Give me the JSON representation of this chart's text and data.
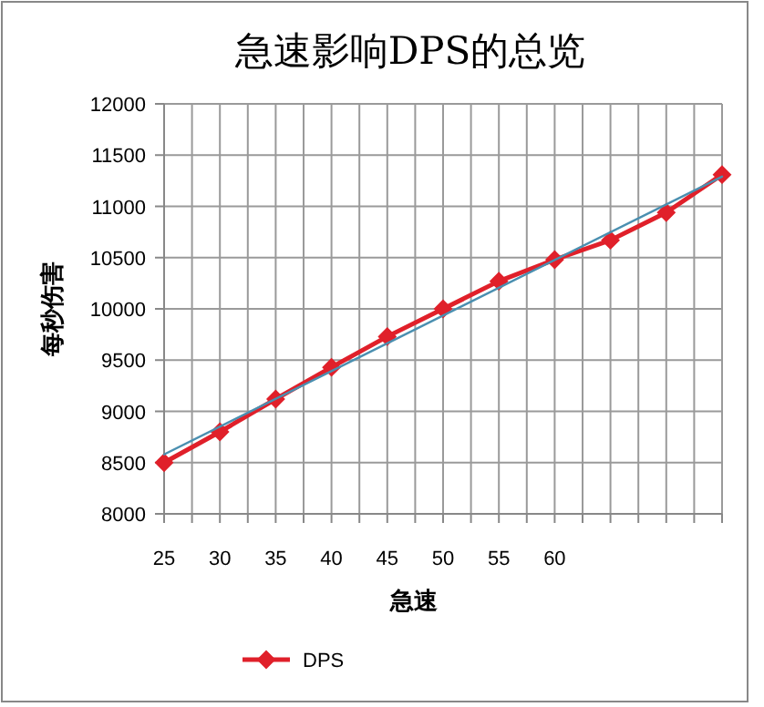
{
  "chart_data": {
    "type": "line",
    "title": "急速影响DPS的总览",
    "xlabel": "急速",
    "ylabel": "每秒伤害",
    "xlim": [
      25,
      75
    ],
    "xticks": [
      25,
      {
        "value": 27.5,
        "label": null
      },
      30,
      {
        "value": 32.5,
        "label": null
      },
      35,
      {
        "value": 37.5,
        "label": null
      },
      40,
      {
        "value": 42.5,
        "label": null
      },
      45,
      {
        "value": 47.5,
        "label": null
      },
      50,
      {
        "value": 52.5,
        "label": null
      },
      55,
      {
        "value": 57.5,
        "label": null
      },
      60,
      {
        "value": 62.5,
        "label": null
      },
      {
        "value": 65,
        "label": null
      },
      {
        "value": 67.5,
        "label": null
      },
      {
        "value": 70,
        "label": null
      },
      {
        "value": 72.5,
        "label": null
      },
      {
        "value": 75,
        "label": null
      }
    ],
    "ylim": [
      8000,
      12000
    ],
    "yticks": [
      8000,
      8500,
      9000,
      9500,
      10000,
      10500,
      11000,
      11500,
      12000
    ],
    "grid": true,
    "legend": "bottom",
    "series": [
      {
        "name": "DPS",
        "color": "#e0202a",
        "marker": "diamond",
        "x": [
          25,
          30,
          35,
          40,
          45,
          50,
          55,
          60,
          65,
          70,
          75
        ],
        "values": [
          8500,
          8800,
          9120,
          9430,
          9730,
          10000,
          10270,
          10480,
          10670,
          10940,
          11310
        ]
      },
      {
        "color": "#4a8fb0",
        "marker": "none",
        "x": [
          25,
          75
        ],
        "values": [
          8580,
          11290
        ]
      }
    ]
  }
}
